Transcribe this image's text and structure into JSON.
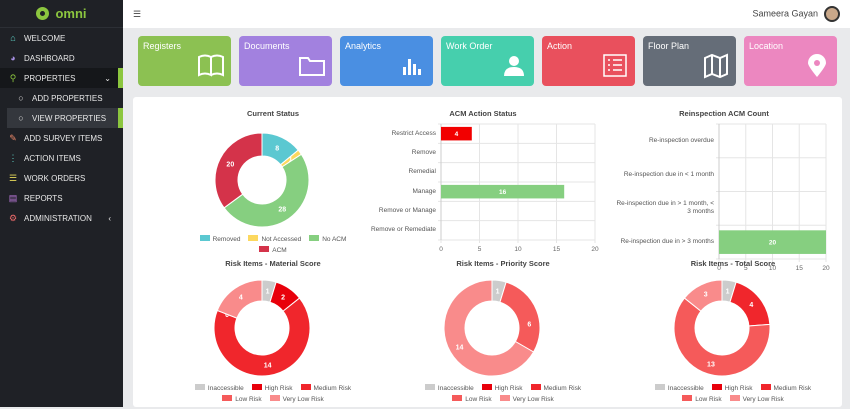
{
  "app": {
    "name": "omni"
  },
  "header": {
    "user": "Sameera Gayan"
  },
  "sidebar": {
    "items": [
      {
        "label": "WELCOME",
        "icon": "home-icon",
        "color": "#5fd3c8"
      },
      {
        "label": "DASHBOARD",
        "icon": "dashboard-icon",
        "color": "#a58ee0"
      },
      {
        "label": "PROPERTIES",
        "icon": "map-marker-icon",
        "color": "#8cc63f"
      },
      {
        "label": "ADD PROPERTIES",
        "icon": "circle-icon",
        "color": "#ddd"
      },
      {
        "label": "VIEW PROPERTIES",
        "icon": "circle-icon",
        "color": "#ddd"
      },
      {
        "label": "ADD SURVEY ITEMS",
        "icon": "pencil-icon",
        "color": "#f08a6a"
      },
      {
        "label": "ACTION ITEMS",
        "icon": "vertical-dots-icon",
        "color": "#5fd3c8"
      },
      {
        "label": "WORK ORDERS",
        "icon": "list-icon",
        "color": "#e6d85a"
      },
      {
        "label": "REPORTS",
        "icon": "file-icon",
        "color": "#c07be0"
      },
      {
        "label": "ADMINISTRATION",
        "icon": "gear-icon",
        "color": "#ee6a6a"
      }
    ]
  },
  "tiles": [
    {
      "label": "Registers",
      "color": "#8cc152",
      "icon": "book-icon"
    },
    {
      "label": "Documents",
      "color": "#a281df",
      "icon": "folder-icon"
    },
    {
      "label": "Analytics",
      "color": "#4a8fe2",
      "icon": "bar-chart-icon"
    },
    {
      "label": "Work Order",
      "color": "#46cfad",
      "icon": "user-icon"
    },
    {
      "label": "Action",
      "color": "#e9505d",
      "icon": "list-icon"
    },
    {
      "label": "Floor Plan",
      "color": "#656d78",
      "icon": "map-icon"
    },
    {
      "label": "Location",
      "color": "#ec87c0",
      "icon": "location-pin-icon"
    }
  ],
  "chart_data": [
    {
      "type": "pie",
      "title": "Current Status",
      "categories": [
        "Removed",
        "Not Accessed",
        "No ACM",
        "ACM"
      ],
      "values": [
        8,
        1,
        28,
        20
      ],
      "colors": [
        "#5bc8d1",
        "#fcd85f",
        "#86cf80",
        "#d4334a"
      ],
      "legend": "bottom"
    },
    {
      "type": "bar",
      "orientation": "horizontal",
      "title": "ACM Action Status",
      "categories": [
        "Restrict Access",
        "Remove",
        "Remedial",
        "Manage",
        "Remove or Manage",
        "Remove or Remediate"
      ],
      "values": [
        4,
        0,
        0,
        16,
        0,
        0
      ],
      "colors": [
        "#f20000",
        "#f20000",
        "#f20000",
        "#86cf80",
        "#86cf80",
        "#86cf80"
      ],
      "xlim": [
        0,
        20
      ],
      "xticks": [
        0,
        5,
        10,
        15,
        20
      ],
      "grid": true
    },
    {
      "type": "bar",
      "orientation": "horizontal",
      "title": "Reinspection ACM Count",
      "categories": [
        "Re-inspection overdue",
        "Re-inspection due in < 1 month",
        "Re-inspection due in > 1 month, < 3 months",
        "Re-inspection due in > 3 months"
      ],
      "values": [
        0,
        0,
        0,
        20
      ],
      "colors": [
        "#86cf80",
        "#86cf80",
        "#86cf80",
        "#86cf80"
      ],
      "xlim": [
        0,
        20
      ],
      "xticks": [
        0,
        5,
        10,
        15,
        20
      ],
      "grid": true
    },
    {
      "type": "pie",
      "title": "Risk Items - Material Score",
      "categories": [
        "Inaccessible",
        "High Risk",
        "Medium Risk",
        "Low Risk",
        "Very Low Risk"
      ],
      "values": [
        1,
        2,
        14,
        0,
        4
      ],
      "colors": [
        "#cccccc",
        "#e8000b",
        "#f0262c",
        "#f55a5a",
        "#f98b8b"
      ],
      "legend": "bottom"
    },
    {
      "type": "pie",
      "title": "Risk Items - Priority Score",
      "categories": [
        "Inaccessible",
        "High Risk",
        "Medium Risk",
        "Low Risk",
        "Very Low Risk"
      ],
      "values": [
        1,
        0,
        0,
        6,
        14
      ],
      "colors": [
        "#cccccc",
        "#e8000b",
        "#f0262c",
        "#f55a5a",
        "#f98b8b"
      ],
      "legend": "bottom"
    },
    {
      "type": "pie",
      "title": "Risk Items - Total Score",
      "categories": [
        "Inaccessible",
        "High Risk",
        "Medium Risk",
        "Low Risk",
        "Very Low Risk"
      ],
      "values": [
        1,
        0,
        4,
        13,
        3
      ],
      "colors": [
        "#cccccc",
        "#e8000b",
        "#f0262c",
        "#f55a5a",
        "#f98b8b"
      ],
      "legend": "bottom"
    }
  ]
}
